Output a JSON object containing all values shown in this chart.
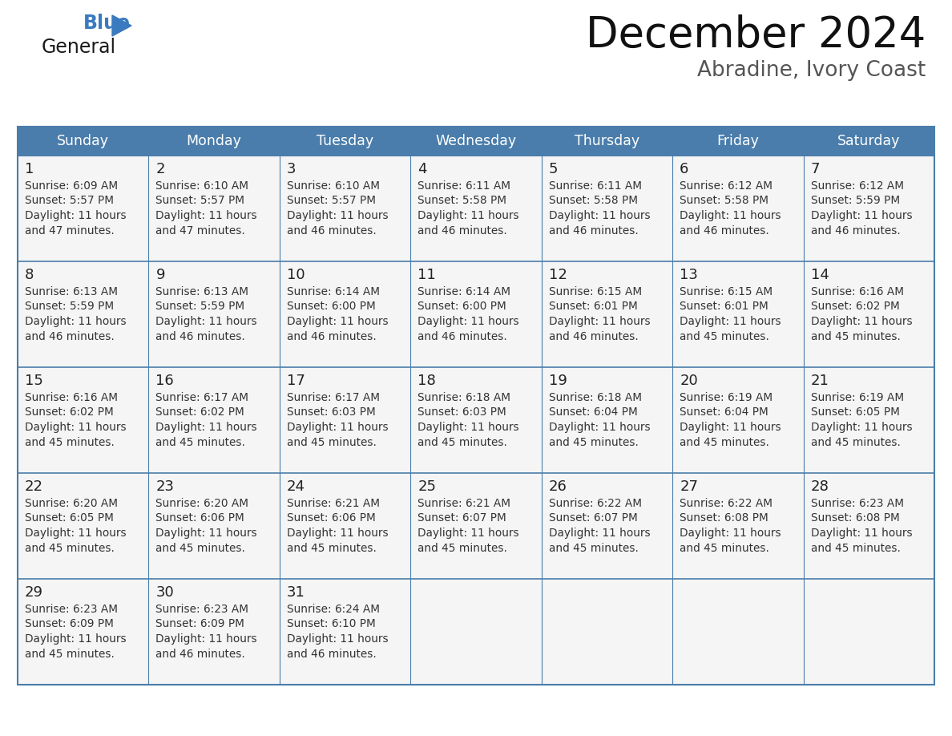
{
  "title": "December 2024",
  "subtitle": "Abradine, Ivory Coast",
  "header_color": "#4a7dab",
  "header_text_color": "#ffffff",
  "cell_bg_color": "#ffffff",
  "cell_alt_bg_color": "#f0f0f0",
  "border_color": "#4a7dab",
  "day_num_color": "#222222",
  "cell_text_color": "#333333",
  "days_of_week": [
    "Sunday",
    "Monday",
    "Tuesday",
    "Wednesday",
    "Thursday",
    "Friday",
    "Saturday"
  ],
  "weeks": [
    [
      {
        "day": 1,
        "sunrise": "6:09 AM",
        "sunset": "5:57 PM",
        "daylight_h": "11 hours",
        "daylight_m": "47 minutes."
      },
      {
        "day": 2,
        "sunrise": "6:10 AM",
        "sunset": "5:57 PM",
        "daylight_h": "11 hours",
        "daylight_m": "47 minutes."
      },
      {
        "day": 3,
        "sunrise": "6:10 AM",
        "sunset": "5:57 PM",
        "daylight_h": "11 hours",
        "daylight_m": "46 minutes."
      },
      {
        "day": 4,
        "sunrise": "6:11 AM",
        "sunset": "5:58 PM",
        "daylight_h": "11 hours",
        "daylight_m": "46 minutes."
      },
      {
        "day": 5,
        "sunrise": "6:11 AM",
        "sunset": "5:58 PM",
        "daylight_h": "11 hours",
        "daylight_m": "46 minutes."
      },
      {
        "day": 6,
        "sunrise": "6:12 AM",
        "sunset": "5:58 PM",
        "daylight_h": "11 hours",
        "daylight_m": "46 minutes."
      },
      {
        "day": 7,
        "sunrise": "6:12 AM",
        "sunset": "5:59 PM",
        "daylight_h": "11 hours",
        "daylight_m": "46 minutes."
      }
    ],
    [
      {
        "day": 8,
        "sunrise": "6:13 AM",
        "sunset": "5:59 PM",
        "daylight_h": "11 hours",
        "daylight_m": "46 minutes."
      },
      {
        "day": 9,
        "sunrise": "6:13 AM",
        "sunset": "5:59 PM",
        "daylight_h": "11 hours",
        "daylight_m": "46 minutes."
      },
      {
        "day": 10,
        "sunrise": "6:14 AM",
        "sunset": "6:00 PM",
        "daylight_h": "11 hours",
        "daylight_m": "46 minutes."
      },
      {
        "day": 11,
        "sunrise": "6:14 AM",
        "sunset": "6:00 PM",
        "daylight_h": "11 hours",
        "daylight_m": "46 minutes."
      },
      {
        "day": 12,
        "sunrise": "6:15 AM",
        "sunset": "6:01 PM",
        "daylight_h": "11 hours",
        "daylight_m": "46 minutes."
      },
      {
        "day": 13,
        "sunrise": "6:15 AM",
        "sunset": "6:01 PM",
        "daylight_h": "11 hours",
        "daylight_m": "45 minutes."
      },
      {
        "day": 14,
        "sunrise": "6:16 AM",
        "sunset": "6:02 PM",
        "daylight_h": "11 hours",
        "daylight_m": "45 minutes."
      }
    ],
    [
      {
        "day": 15,
        "sunrise": "6:16 AM",
        "sunset": "6:02 PM",
        "daylight_h": "11 hours",
        "daylight_m": "45 minutes."
      },
      {
        "day": 16,
        "sunrise": "6:17 AM",
        "sunset": "6:02 PM",
        "daylight_h": "11 hours",
        "daylight_m": "45 minutes."
      },
      {
        "day": 17,
        "sunrise": "6:17 AM",
        "sunset": "6:03 PM",
        "daylight_h": "11 hours",
        "daylight_m": "45 minutes."
      },
      {
        "day": 18,
        "sunrise": "6:18 AM",
        "sunset": "6:03 PM",
        "daylight_h": "11 hours",
        "daylight_m": "45 minutes."
      },
      {
        "day": 19,
        "sunrise": "6:18 AM",
        "sunset": "6:04 PM",
        "daylight_h": "11 hours",
        "daylight_m": "45 minutes."
      },
      {
        "day": 20,
        "sunrise": "6:19 AM",
        "sunset": "6:04 PM",
        "daylight_h": "11 hours",
        "daylight_m": "45 minutes."
      },
      {
        "day": 21,
        "sunrise": "6:19 AM",
        "sunset": "6:05 PM",
        "daylight_h": "11 hours",
        "daylight_m": "45 minutes."
      }
    ],
    [
      {
        "day": 22,
        "sunrise": "6:20 AM",
        "sunset": "6:05 PM",
        "daylight_h": "11 hours",
        "daylight_m": "45 minutes."
      },
      {
        "day": 23,
        "sunrise": "6:20 AM",
        "sunset": "6:06 PM",
        "daylight_h": "11 hours",
        "daylight_m": "45 minutes."
      },
      {
        "day": 24,
        "sunrise": "6:21 AM",
        "sunset": "6:06 PM",
        "daylight_h": "11 hours",
        "daylight_m": "45 minutes."
      },
      {
        "day": 25,
        "sunrise": "6:21 AM",
        "sunset": "6:07 PM",
        "daylight_h": "11 hours",
        "daylight_m": "45 minutes."
      },
      {
        "day": 26,
        "sunrise": "6:22 AM",
        "sunset": "6:07 PM",
        "daylight_h": "11 hours",
        "daylight_m": "45 minutes."
      },
      {
        "day": 27,
        "sunrise": "6:22 AM",
        "sunset": "6:08 PM",
        "daylight_h": "11 hours",
        "daylight_m": "45 minutes."
      },
      {
        "day": 28,
        "sunrise": "6:23 AM",
        "sunset": "6:08 PM",
        "daylight_h": "11 hours",
        "daylight_m": "45 minutes."
      }
    ],
    [
      {
        "day": 29,
        "sunrise": "6:23 AM",
        "sunset": "6:09 PM",
        "daylight_h": "11 hours",
        "daylight_m": "45 minutes."
      },
      {
        "day": 30,
        "sunrise": "6:23 AM",
        "sunset": "6:09 PM",
        "daylight_h": "11 hours",
        "daylight_m": "46 minutes."
      },
      {
        "day": 31,
        "sunrise": "6:24 AM",
        "sunset": "6:10 PM",
        "daylight_h": "11 hours",
        "daylight_m": "46 minutes."
      },
      null,
      null,
      null,
      null
    ]
  ],
  "logo_color1": "#1a1a1a",
  "logo_color2": "#3a7abf",
  "logo_triangle_color": "#3a7abf",
  "fig_width": 11.88,
  "fig_height": 9.18,
  "dpi": 100
}
